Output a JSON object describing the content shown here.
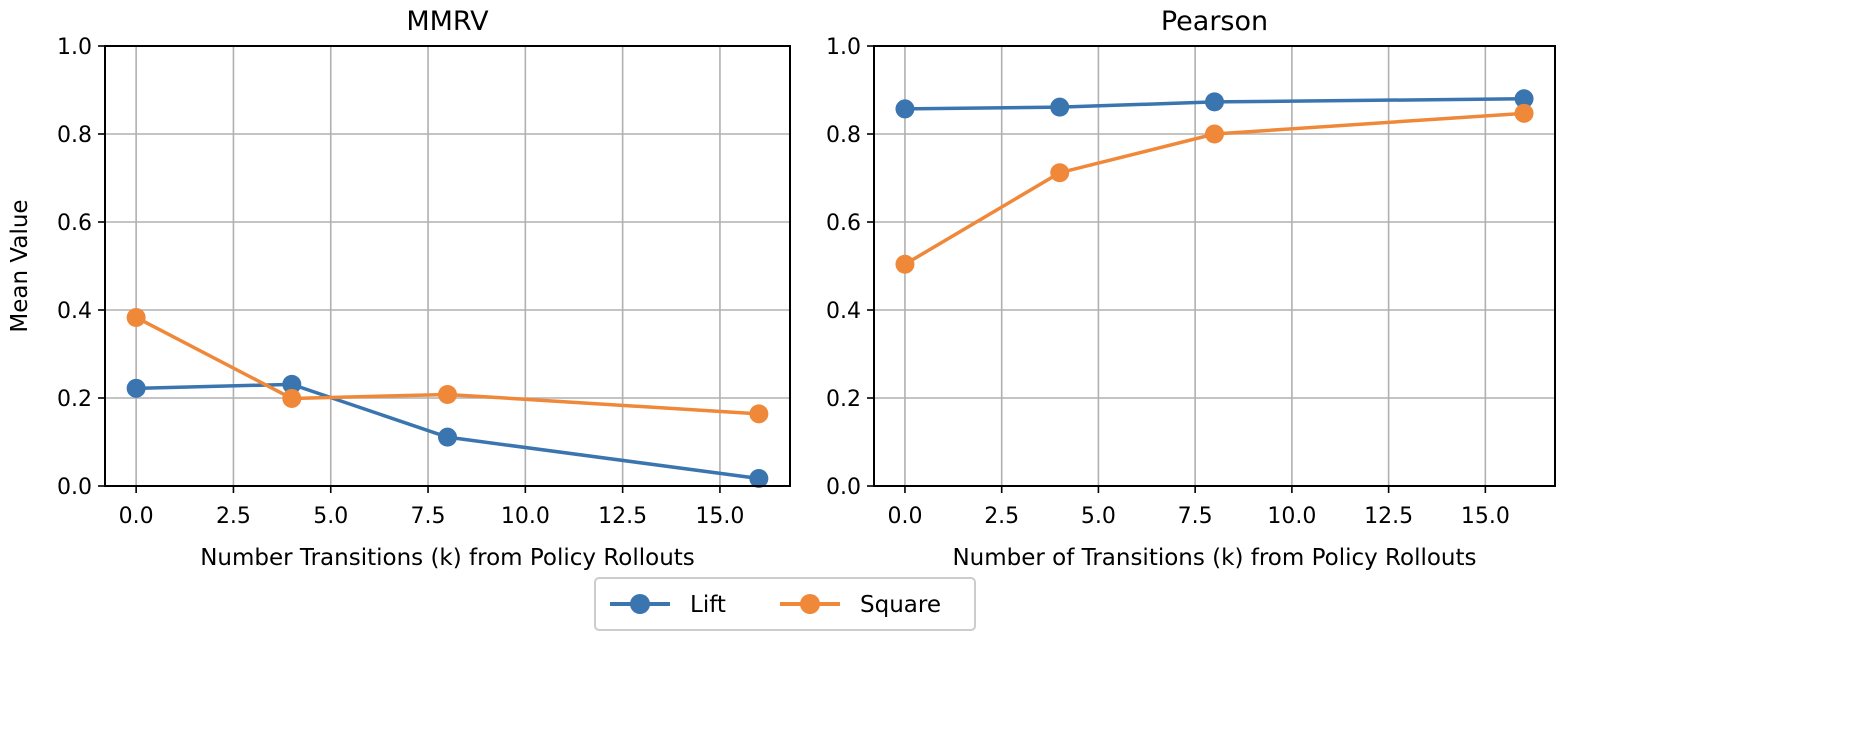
{
  "chart_data": [
    {
      "type": "line",
      "title": "MMRV",
      "xlabel": "Number Transitions (k) from Policy Rollouts",
      "ylabel": "Mean Value",
      "x": [
        0,
        4,
        8,
        16
      ],
      "xlim": [
        -0.8,
        16.8
      ],
      "ylim": [
        0,
        1
      ],
      "xticks": [
        "0.0",
        "2.5",
        "5.0",
        "7.5",
        "10.0",
        "12.5",
        "15.0"
      ],
      "yticks": [
        "0.0",
        "0.2",
        "0.4",
        "0.6",
        "0.8",
        "1.0"
      ],
      "grid": true,
      "series": [
        {
          "name": "Lift",
          "color": "#3a75b0",
          "values": [
            0.222,
            0.231,
            0.111,
            0.017
          ]
        },
        {
          "name": "Square",
          "color": "#f0883a",
          "values": [
            0.383,
            0.199,
            0.208,
            0.164
          ]
        }
      ]
    },
    {
      "type": "line",
      "title": "Pearson",
      "xlabel": "Number of Transitions (k) from Policy Rollouts",
      "ylabel": "",
      "x": [
        0,
        4,
        8,
        16
      ],
      "xlim": [
        -0.8,
        16.8
      ],
      "ylim": [
        0,
        1
      ],
      "xticks": [
        "0.0",
        "2.5",
        "5.0",
        "7.5",
        "10.0",
        "12.5",
        "15.0"
      ],
      "yticks": [
        "0.0",
        "0.2",
        "0.4",
        "0.6",
        "0.8",
        "1.0"
      ],
      "grid": true,
      "series": [
        {
          "name": "Lift",
          "color": "#3a75b0",
          "values": [
            0.857,
            0.861,
            0.873,
            0.88
          ]
        },
        {
          "name": "Square",
          "color": "#f0883a",
          "values": [
            0.504,
            0.712,
            0.8,
            0.847
          ]
        }
      ]
    }
  ],
  "legend": {
    "placement": "bottom-center",
    "entries": [
      {
        "label": "Lift",
        "color": "#3a75b0"
      },
      {
        "label": "Square",
        "color": "#f0883a"
      }
    ]
  }
}
